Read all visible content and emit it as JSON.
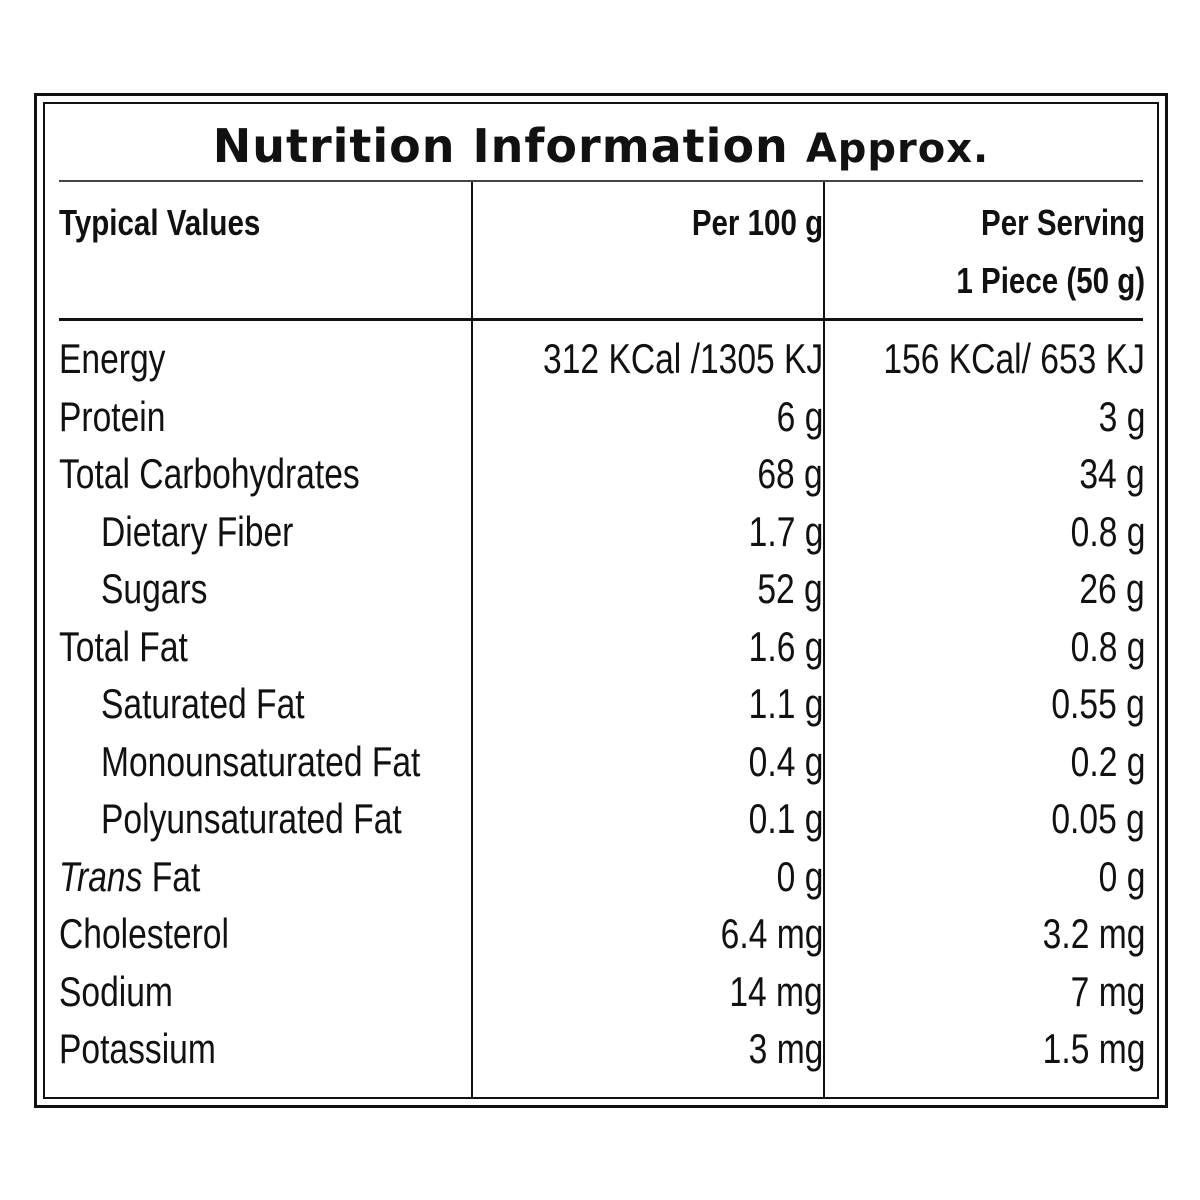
{
  "title": {
    "main": "Nutrition Information",
    "suffix": "Approx."
  },
  "headers": {
    "typical_values": "Typical Values",
    "per_100g": "Per 100 g",
    "per_serving_line1": "Per Serving",
    "per_serving_line2": "1 Piece (50 g)"
  },
  "rows": [
    {
      "name": "Energy",
      "per_100g": "312 KCal /1305 KJ",
      "per_serving": "156 KCal/ 653 KJ",
      "indent": false
    },
    {
      "name": "Protein",
      "per_100g": "6 g",
      "per_serving": "3 g",
      "indent": false
    },
    {
      "name": "Total Carbohydrates",
      "per_100g": "68 g",
      "per_serving": "34 g",
      "indent": false
    },
    {
      "name": "Dietary Fiber",
      "per_100g": "1.7 g",
      "per_serving": "0.8 g",
      "indent": true
    },
    {
      "name": "Sugars",
      "per_100g": "52 g",
      "per_serving": "26 g",
      "indent": true
    },
    {
      "name": "Total Fat",
      "per_100g": "1.6 g",
      "per_serving": "0.8 g",
      "indent": false
    },
    {
      "name": "Saturated Fat",
      "per_100g": "1.1 g",
      "per_serving": "0.55 g",
      "indent": true
    },
    {
      "name": "Monounsaturated Fat",
      "per_100g": "0.4 g",
      "per_serving": "0.2 g",
      "indent": true
    },
    {
      "name": "Polyunsaturated Fat",
      "per_100g": "0.1 g",
      "per_serving": "0.05 g",
      "indent": true
    },
    {
      "name_italic": "Trans",
      "name_rest": " Fat",
      "per_100g": "0 g",
      "per_serving": "0 g",
      "indent": false
    },
    {
      "name": "Cholesterol",
      "per_100g": "6.4 mg",
      "per_serving": "3.2 mg",
      "indent": false
    },
    {
      "name": "Sodium",
      "per_100g": "14 mg",
      "per_serving": "7 mg",
      "indent": false
    },
    {
      "name": "Potassium",
      "per_100g": "3 mg",
      "per_serving": "1.5 mg",
      "indent": false
    }
  ]
}
